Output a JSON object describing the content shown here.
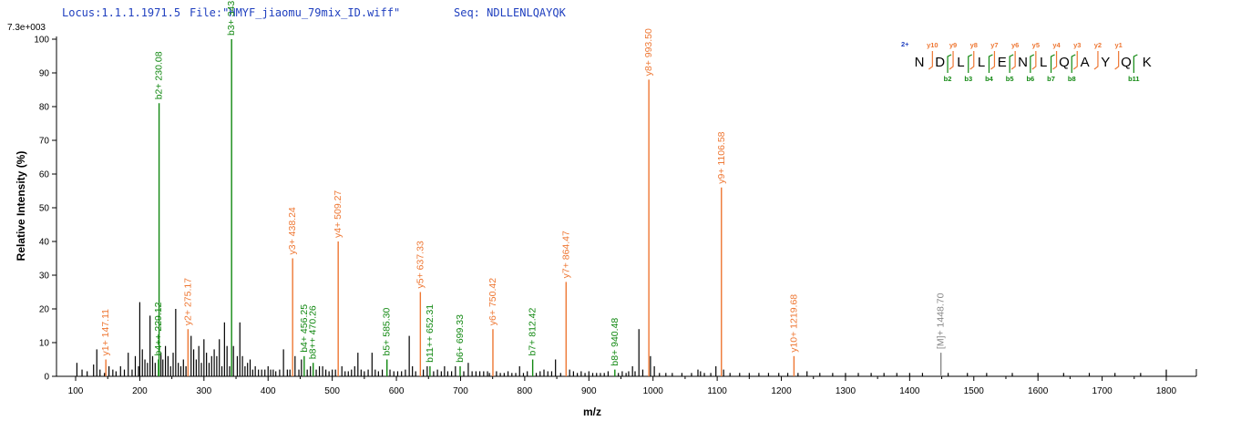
{
  "header": {
    "locus": "Locus:1.1.1.1971.5",
    "file": "File:\"HMYF_jiaomu_79mix_ID.wiff\"",
    "seq": "Seq: NDLLENLQAYQK"
  },
  "colors": {
    "y_ion": "#ee7733",
    "b_ion": "#118811",
    "precursor": "#888888",
    "noise": "#000000",
    "charge": "#1f3fbf"
  },
  "chart_data": {
    "type": "bar",
    "max_intensity_label": "7.3e+003",
    "xlabel": "m/z",
    "ylabel": "Relative   Intensity (%)",
    "xlim": [
      75,
      1830
    ],
    "ylim": [
      0,
      100
    ],
    "x_ticks": [
      100,
      200,
      300,
      400,
      500,
      600,
      700,
      800,
      900,
      1000,
      1100,
      1200,
      1300,
      1400,
      1500,
      1600,
      1700,
      1800
    ],
    "y_ticks": [
      0,
      10,
      20,
      30,
      40,
      50,
      60,
      70,
      80,
      90,
      100
    ],
    "grid": false,
    "annotated_peaks": [
      {
        "label": "y1+ 147.11",
        "mz": 147.11,
        "intensity": 5,
        "ion": "y"
      },
      {
        "label": "b2+ 230.08",
        "mz": 230.08,
        "intensity": 81,
        "ion": "b"
      },
      {
        "label": "b4++ 229.12",
        "mz": 229.12,
        "intensity": 5,
        "ion": "b"
      },
      {
        "label": "y2+ 275.17",
        "mz": 275.17,
        "intensity": 14,
        "ion": "y"
      },
      {
        "label": "b3+ 343.1",
        "mz": 343.1,
        "intensity": 100,
        "ion": "b"
      },
      {
        "label": "y3+ 438.24",
        "mz": 438.24,
        "intensity": 35,
        "ion": "y"
      },
      {
        "label": "b4+ 456.25",
        "mz": 456.25,
        "intensity": 6,
        "ion": "b"
      },
      {
        "label": "b8++ 470.26",
        "mz": 470.26,
        "intensity": 4,
        "ion": "b"
      },
      {
        "label": "y4+ 509.27",
        "mz": 509.27,
        "intensity": 40,
        "ion": "y"
      },
      {
        "label": "b5+ 585.30",
        "mz": 585.3,
        "intensity": 5,
        "ion": "b"
      },
      {
        "label": "y5+ 637.33",
        "mz": 637.33,
        "intensity": 25,
        "ion": "y"
      },
      {
        "label": "b11++ 652.31",
        "mz": 652.31,
        "intensity": 3,
        "ion": "b"
      },
      {
        "label": "b6+ 699.33",
        "mz": 699.33,
        "intensity": 3,
        "ion": "b"
      },
      {
        "label": "y6+ 750.42",
        "mz": 750.42,
        "intensity": 14,
        "ion": "y"
      },
      {
        "label": "b7+ 812.42",
        "mz": 812.42,
        "intensity": 5,
        "ion": "b"
      },
      {
        "label": "y7+ 864.47",
        "mz": 864.47,
        "intensity": 28,
        "ion": "y"
      },
      {
        "label": "b8+ 940.48",
        "mz": 940.48,
        "intensity": 2,
        "ion": "b"
      },
      {
        "label": "y8+ 993.50",
        "mz": 993.5,
        "intensity": 88,
        "ion": "y"
      },
      {
        "label": "y9+ 1106.58",
        "mz": 1106.58,
        "intensity": 56,
        "ion": "y"
      },
      {
        "label": "y10+ 1219.68",
        "mz": 1219.68,
        "intensity": 6,
        "ion": "y"
      },
      {
        "label": "[M]+ 1448.70",
        "mz": 1448.7,
        "intensity": 7,
        "ion": "precursor"
      }
    ],
    "noise_peaks": [
      [
        102,
        4
      ],
      [
        110,
        2
      ],
      [
        118,
        1.5
      ],
      [
        128,
        3.5
      ],
      [
        133,
        8
      ],
      [
        138,
        2
      ],
      [
        145,
        1
      ],
      [
        152,
        3
      ],
      [
        158,
        2
      ],
      [
        163,
        1.5
      ],
      [
        170,
        3
      ],
      [
        176,
        2
      ],
      [
        182,
        7
      ],
      [
        188,
        2
      ],
      [
        193,
        6
      ],
      [
        198,
        3
      ],
      [
        200,
        22
      ],
      [
        204,
        8
      ],
      [
        208,
        5
      ],
      [
        212,
        4
      ],
      [
        216,
        18
      ],
      [
        220,
        6
      ],
      [
        224,
        4
      ],
      [
        233,
        7
      ],
      [
        236,
        5
      ],
      [
        240,
        9
      ],
      [
        244,
        6
      ],
      [
        248,
        3
      ],
      [
        252,
        7
      ],
      [
        256,
        20
      ],
      [
        260,
        4
      ],
      [
        264,
        3
      ],
      [
        268,
        5
      ],
      [
        272,
        3
      ],
      [
        280,
        12
      ],
      [
        284,
        8
      ],
      [
        288,
        5
      ],
      [
        292,
        9
      ],
      [
        296,
        4
      ],
      [
        300,
        11
      ],
      [
        304,
        7
      ],
      [
        308,
        4
      ],
      [
        312,
        6
      ],
      [
        316,
        8
      ],
      [
        320,
        6
      ],
      [
        324,
        11
      ],
      [
        328,
        3
      ],
      [
        332,
        16
      ],
      [
        336,
        9
      ],
      [
        340,
        3
      ],
      [
        346,
        9
      ],
      [
        352,
        6
      ],
      [
        356,
        16
      ],
      [
        360,
        6
      ],
      [
        364,
        3
      ],
      [
        368,
        4
      ],
      [
        372,
        5
      ],
      [
        376,
        2
      ],
      [
        380,
        3
      ],
      [
        385,
        2
      ],
      [
        390,
        2
      ],
      [
        395,
        2
      ],
      [
        400,
        3
      ],
      [
        404,
        2
      ],
      [
        408,
        2
      ],
      [
        412,
        1.5
      ],
      [
        418,
        2
      ],
      [
        424,
        8
      ],
      [
        430,
        2
      ],
      [
        434,
        2
      ],
      [
        442,
        6
      ],
      [
        448,
        2
      ],
      [
        452,
        5
      ],
      [
        461,
        2
      ],
      [
        466,
        3
      ],
      [
        475,
        2
      ],
      [
        480,
        3
      ],
      [
        485,
        3
      ],
      [
        490,
        2
      ],
      [
        495,
        1.5
      ],
      [
        500,
        2
      ],
      [
        505,
        2
      ],
      [
        515,
        3
      ],
      [
        520,
        1.5
      ],
      [
        525,
        1.5
      ],
      [
        530,
        2
      ],
      [
        535,
        3
      ],
      [
        540,
        7
      ],
      [
        545,
        2
      ],
      [
        550,
        1.5
      ],
      [
        556,
        2
      ],
      [
        562,
        7
      ],
      [
        567,
        2
      ],
      [
        572,
        1.5
      ],
      [
        578,
        2
      ],
      [
        590,
        2
      ],
      [
        596,
        1.5
      ],
      [
        602,
        1.5
      ],
      [
        608,
        1.5
      ],
      [
        614,
        2
      ],
      [
        620,
        12
      ],
      [
        625,
        3
      ],
      [
        630,
        1.5
      ],
      [
        642,
        2
      ],
      [
        648,
        3
      ],
      [
        658,
        1.5
      ],
      [
        664,
        2
      ],
      [
        670,
        1.5
      ],
      [
        675,
        3
      ],
      [
        680,
        1.5
      ],
      [
        686,
        1.5
      ],
      [
        692,
        3
      ],
      [
        705,
        1.5
      ],
      [
        712,
        4
      ],
      [
        718,
        1.5
      ],
      [
        724,
        1.5
      ],
      [
        730,
        1.5
      ],
      [
        736,
        1.5
      ],
      [
        742,
        1.5
      ],
      [
        745,
        1
      ],
      [
        756,
        1.5
      ],
      [
        762,
        1
      ],
      [
        768,
        1
      ],
      [
        774,
        1.5
      ],
      [
        780,
        1
      ],
      [
        786,
        1
      ],
      [
        792,
        3
      ],
      [
        798,
        1
      ],
      [
        804,
        1.5
      ],
      [
        818,
        1
      ],
      [
        824,
        1.5
      ],
      [
        830,
        2
      ],
      [
        836,
        1.5
      ],
      [
        842,
        1.5
      ],
      [
        848,
        5
      ],
      [
        856,
        1
      ],
      [
        870,
        2
      ],
      [
        876,
        1.5
      ],
      [
        882,
        1
      ],
      [
        888,
        1.5
      ],
      [
        894,
        1
      ],
      [
        900,
        1.5
      ],
      [
        906,
        1
      ],
      [
        912,
        1
      ],
      [
        918,
        1
      ],
      [
        924,
        1
      ],
      [
        930,
        1.5
      ],
      [
        946,
        1
      ],
      [
        952,
        1.5
      ],
      [
        958,
        1
      ],
      [
        962,
        1.5
      ],
      [
        968,
        3
      ],
      [
        972,
        1.5
      ],
      [
        978,
        14
      ],
      [
        984,
        2
      ],
      [
        996,
        6
      ],
      [
        1002,
        3
      ],
      [
        1010,
        1
      ],
      [
        1020,
        1
      ],
      [
        1030,
        1
      ],
      [
        1045,
        1
      ],
      [
        1060,
        1
      ],
      [
        1070,
        2
      ],
      [
        1074,
        1.5
      ],
      [
        1080,
        1
      ],
      [
        1090,
        1
      ],
      [
        1098,
        3
      ],
      [
        1110,
        2
      ],
      [
        1120,
        1
      ],
      [
        1135,
        1
      ],
      [
        1150,
        1
      ],
      [
        1165,
        1
      ],
      [
        1180,
        1
      ],
      [
        1196,
        1
      ],
      [
        1210,
        1
      ],
      [
        1226,
        1
      ],
      [
        1240,
        1.5
      ],
      [
        1260,
        1
      ],
      [
        1280,
        1
      ],
      [
        1300,
        1
      ],
      [
        1320,
        1
      ],
      [
        1340,
        1
      ],
      [
        1360,
        1
      ],
      [
        1380,
        1
      ],
      [
        1400,
        1
      ],
      [
        1420,
        1
      ],
      [
        1460,
        1
      ],
      [
        1490,
        1
      ],
      [
        1520,
        1
      ],
      [
        1560,
        1
      ],
      [
        1600,
        1
      ],
      [
        1640,
        1
      ],
      [
        1680,
        1
      ],
      [
        1720,
        1
      ],
      [
        1760,
        1
      ],
      [
        1800,
        2
      ]
    ]
  },
  "fragment_map": {
    "charge": "2+",
    "residues": [
      "N",
      "D",
      "L",
      "L",
      "E",
      "N",
      "L",
      "Q",
      "A",
      "Y",
      "Q",
      "K"
    ],
    "y_ions": [
      {
        "label": "y10",
        "pos": 2
      },
      {
        "label": "y9",
        "pos": 3
      },
      {
        "label": "y8",
        "pos": 4
      },
      {
        "label": "y7",
        "pos": 5
      },
      {
        "label": "y6",
        "pos": 6
      },
      {
        "label": "y5",
        "pos": 7
      },
      {
        "label": "y4",
        "pos": 8
      },
      {
        "label": "y3",
        "pos": 9
      },
      {
        "label": "y2",
        "pos": 10
      },
      {
        "label": "y1",
        "pos": 11
      }
    ],
    "b_ions": [
      {
        "label": "b2",
        "pos": 2
      },
      {
        "label": "b3",
        "pos": 3
      },
      {
        "label": "b4",
        "pos": 4
      },
      {
        "label": "b5",
        "pos": 5
      },
      {
        "label": "b6",
        "pos": 6
      },
      {
        "label": "b7",
        "pos": 7
      },
      {
        "label": "b8",
        "pos": 8
      },
      {
        "label": "b11",
        "pos": 11
      }
    ]
  }
}
